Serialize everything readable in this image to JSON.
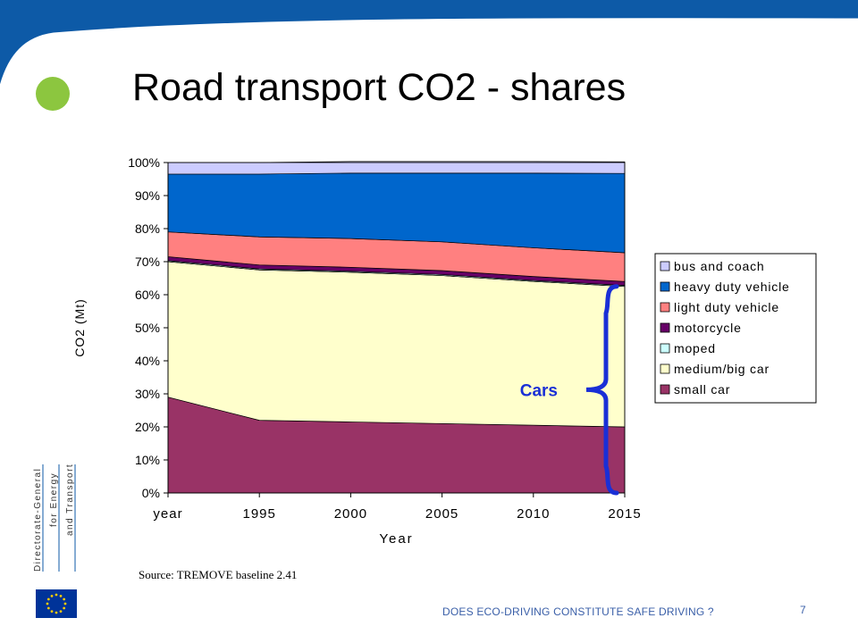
{
  "slide": {
    "title": "Road transport CO2 - shares",
    "source": "Source: TREMOVE baseline 2.41",
    "footer": "DOES ECO-DRIVING  CONSTITUTE  SAFE DRIVING ?",
    "page_number": "7",
    "logo_text": [
      "Directorate-General",
      "for Energy",
      "and Transport"
    ],
    "colors": {
      "banner": "#0d5aa7",
      "bullet": "#8cc63f",
      "footer_text": "#3a5fa8",
      "cars_brace": "#1a2fd6"
    }
  },
  "chart_data": {
    "type": "area",
    "stacked": true,
    "percent": true,
    "xlabel": "Year",
    "ylabel": "CO2 (Mt)",
    "x": [
      "year",
      "1995",
      "2000",
      "2005",
      "2010",
      "2015"
    ],
    "yticks": [
      "0%",
      "10%",
      "20%",
      "30%",
      "40%",
      "50%",
      "60%",
      "70%",
      "80%",
      "90%",
      "100%"
    ],
    "ylim": [
      0,
      100
    ],
    "legend_position": "right",
    "series": [
      {
        "name": "small car",
        "color": "#993366",
        "values": [
          29,
          22,
          21.5,
          21,
          20.5,
          20
        ]
      },
      {
        "name": "medium/big car",
        "color": "#ffffcc",
        "values": [
          41,
          45.5,
          45.3,
          44.8,
          43.5,
          42.5
        ]
      },
      {
        "name": "moped",
        "color": "#ccffff",
        "values": [
          0.3,
          0.3,
          0.3,
          0.3,
          0.3,
          0.3
        ]
      },
      {
        "name": "motorcycle",
        "color": "#660066",
        "values": [
          1.2,
          1.2,
          1.2,
          1.2,
          1.2,
          1.2
        ]
      },
      {
        "name": "light duty vehicle",
        "color": "#ff8080",
        "values": [
          7.5,
          8.5,
          8.7,
          8.7,
          8.7,
          8.7
        ]
      },
      {
        "name": "heavy duty vehicle",
        "color": "#0066cc",
        "values": [
          17.5,
          19,
          19.8,
          20.8,
          22.6,
          24
        ]
      },
      {
        "name": "bus and coach",
        "color": "#ccccff",
        "values": [
          3.5,
          3.5,
          3.5,
          3.5,
          3.5,
          3.5
        ]
      }
    ],
    "annotation": {
      "text": "Cars",
      "color": "#1a2fd6",
      "spans": [
        "small car",
        "medium/big car"
      ]
    }
  }
}
